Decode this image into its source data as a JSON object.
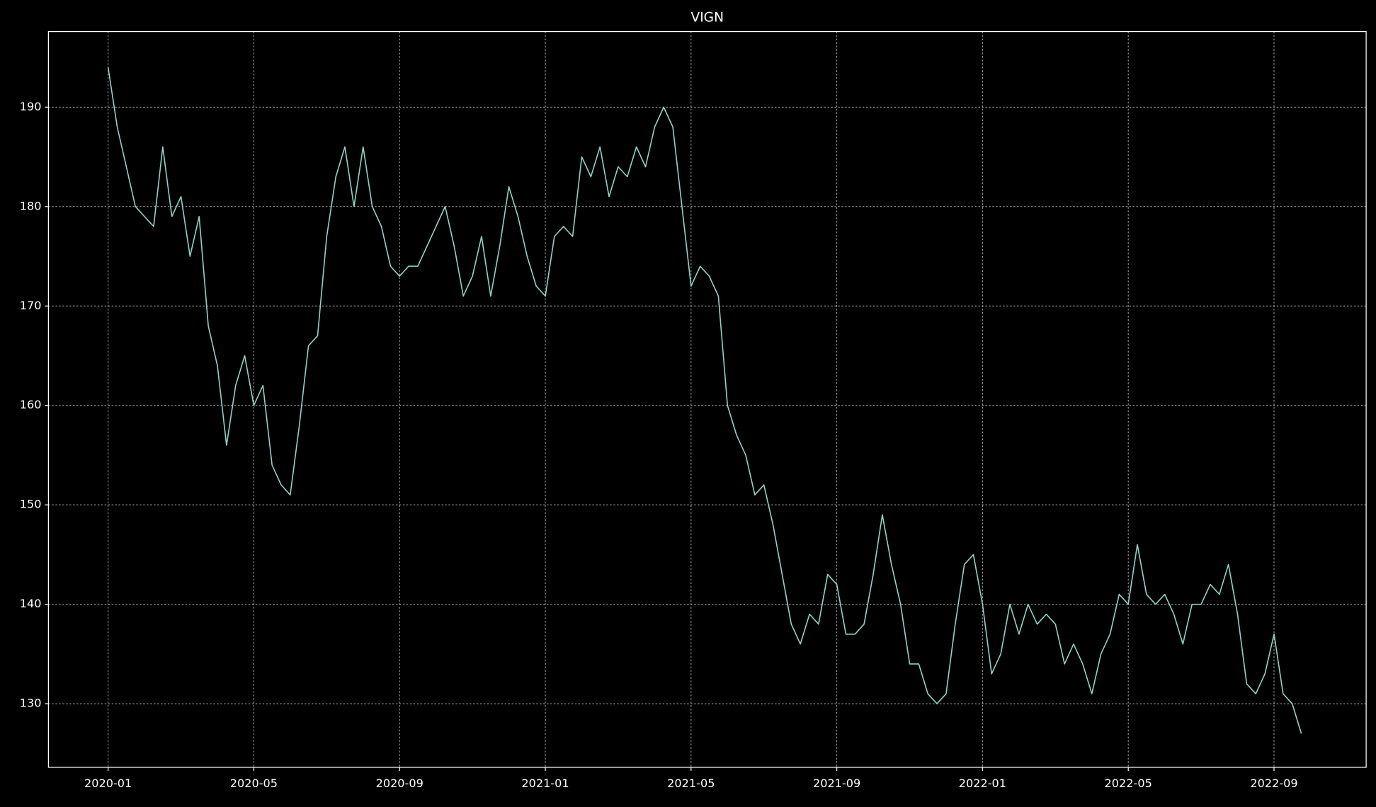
{
  "chart_data": {
    "type": "line",
    "title": "VIGN",
    "x": [
      "2020-01",
      "2020-01",
      "2020-01",
      "2020-01",
      "2020-02",
      "2020-02",
      "2020-02",
      "2020-02",
      "2020-03",
      "2020-03",
      "2020-03",
      "2020-03",
      "2020-04",
      "2020-04",
      "2020-04",
      "2020-04",
      "2020-05",
      "2020-05",
      "2020-05",
      "2020-05",
      "2020-06",
      "2020-06",
      "2020-06",
      "2020-06",
      "2020-07",
      "2020-07",
      "2020-07",
      "2020-07",
      "2020-08",
      "2020-08",
      "2020-08",
      "2020-08",
      "2020-09",
      "2020-09",
      "2020-09",
      "2020-09",
      "2020-10",
      "2020-10",
      "2020-10",
      "2020-10",
      "2020-11",
      "2020-11",
      "2020-11",
      "2020-11",
      "2020-12",
      "2020-12",
      "2020-12",
      "2020-12",
      "2021-01",
      "2021-01",
      "2021-01",
      "2021-01",
      "2021-02",
      "2021-02",
      "2021-02",
      "2021-02",
      "2021-03",
      "2021-03",
      "2021-03",
      "2021-03",
      "2021-04",
      "2021-04",
      "2021-04",
      "2021-04",
      "2021-05",
      "2021-05",
      "2021-05",
      "2021-05",
      "2021-06",
      "2021-06",
      "2021-06",
      "2021-06",
      "2021-07",
      "2021-07",
      "2021-07",
      "2021-07",
      "2021-08",
      "2021-08",
      "2021-08",
      "2021-08",
      "2021-09",
      "2021-09",
      "2021-09",
      "2021-09",
      "2021-10",
      "2021-10",
      "2021-10",
      "2021-10",
      "2021-11",
      "2021-11",
      "2021-11",
      "2021-11",
      "2021-12",
      "2021-12",
      "2021-12",
      "2021-12",
      "2022-01",
      "2022-01",
      "2022-01",
      "2022-01",
      "2022-02",
      "2022-02",
      "2022-02",
      "2022-02",
      "2022-03",
      "2022-03",
      "2022-03",
      "2022-03",
      "2022-04",
      "2022-04",
      "2022-04",
      "2022-04",
      "2022-05",
      "2022-05",
      "2022-05",
      "2022-05",
      "2022-06",
      "2022-06",
      "2022-06",
      "2022-06",
      "2022-07",
      "2022-07",
      "2022-07",
      "2022-07",
      "2022-08",
      "2022-08",
      "2022-08",
      "2022-08",
      "2022-09",
      "2022-09",
      "2022-09",
      "2022-09"
    ],
    "values": [
      194,
      188,
      184,
      180,
      179,
      178,
      186,
      179,
      181,
      175,
      179,
      168,
      164,
      156,
      162,
      165,
      160,
      162,
      154,
      152,
      151,
      158,
      166,
      167,
      177,
      183,
      186,
      180,
      186,
      180,
      178,
      174,
      173,
      174,
      174,
      176,
      178,
      180,
      176,
      171,
      173,
      177,
      171,
      176,
      182,
      179,
      175,
      172,
      171,
      177,
      178,
      177,
      185,
      183,
      186,
      181,
      184,
      183,
      186,
      184,
      188,
      190,
      188,
      180,
      172,
      174,
      173,
      171,
      160,
      157,
      155,
      151,
      152,
      148,
      143,
      138,
      136,
      139,
      138,
      143,
      142,
      137,
      137,
      138,
      143,
      149,
      144,
      140,
      134,
      134,
      131,
      130,
      131,
      138,
      144,
      145,
      140,
      133,
      135,
      140,
      137,
      140,
      138,
      139,
      138,
      134,
      136,
      134,
      131,
      135,
      137,
      141,
      140,
      146,
      141,
      140,
      141,
      139,
      136,
      140,
      140,
      142,
      141,
      144,
      139,
      132,
      131,
      133,
      137,
      131,
      130,
      127
    ],
    "color": "#8dd3c7",
    "ylim": [
      123.6,
      197.6
    ],
    "yticks": [
      130,
      140,
      150,
      160,
      170,
      180,
      190
    ],
    "xticks": [
      "2020-01",
      "2020-05",
      "2020-09",
      "2021-01",
      "2021-05",
      "2021-09",
      "2022-01",
      "2022-05",
      "2022-09"
    ],
    "grid": true
  }
}
